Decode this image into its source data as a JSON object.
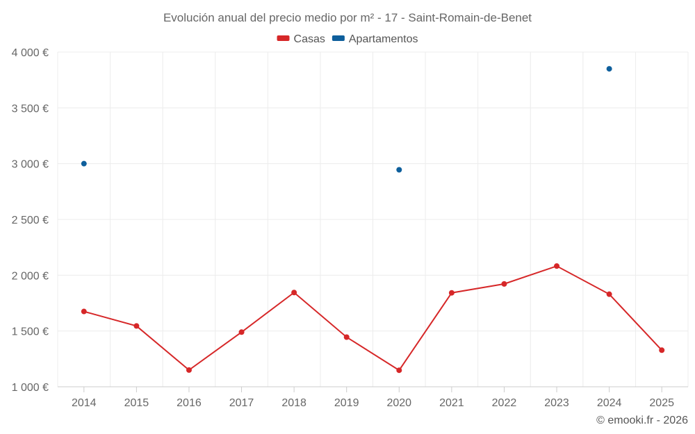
{
  "chart_data": {
    "type": "line",
    "title": "Evolución anual del precio medio por m² - 17 - Saint-Romain-de-Benet",
    "categories": [
      "2014",
      "2015",
      "2016",
      "2017",
      "2018",
      "2019",
      "2020",
      "2021",
      "2022",
      "2023",
      "2024",
      "2025"
    ],
    "series": [
      {
        "name": "Casas",
        "color": "#d62728",
        "style": "line-markers",
        "values": [
          1675,
          1545,
          1150,
          1490,
          1845,
          1445,
          1148,
          1842,
          1922,
          2082,
          1830,
          1328
        ]
      },
      {
        "name": "Apartamentos",
        "color": "#0e5f9c",
        "style": "markers",
        "values": [
          3000,
          null,
          null,
          null,
          null,
          null,
          2945,
          null,
          null,
          null,
          3850,
          null
        ]
      }
    ],
    "ylim": [
      1000,
      4000
    ],
    "yticks": [
      1000,
      1500,
      2000,
      2500,
      3000,
      3500,
      4000
    ],
    "ytick_labels": [
      "1 000 €",
      "1 500 €",
      "2 000 €",
      "2 500 €",
      "3 000 €",
      "3 500 €",
      "4 000 €"
    ],
    "xlabel": "",
    "ylabel": "",
    "grid": true,
    "legend_position": "top-center"
  },
  "credit": "© emooki.fr - 2026"
}
